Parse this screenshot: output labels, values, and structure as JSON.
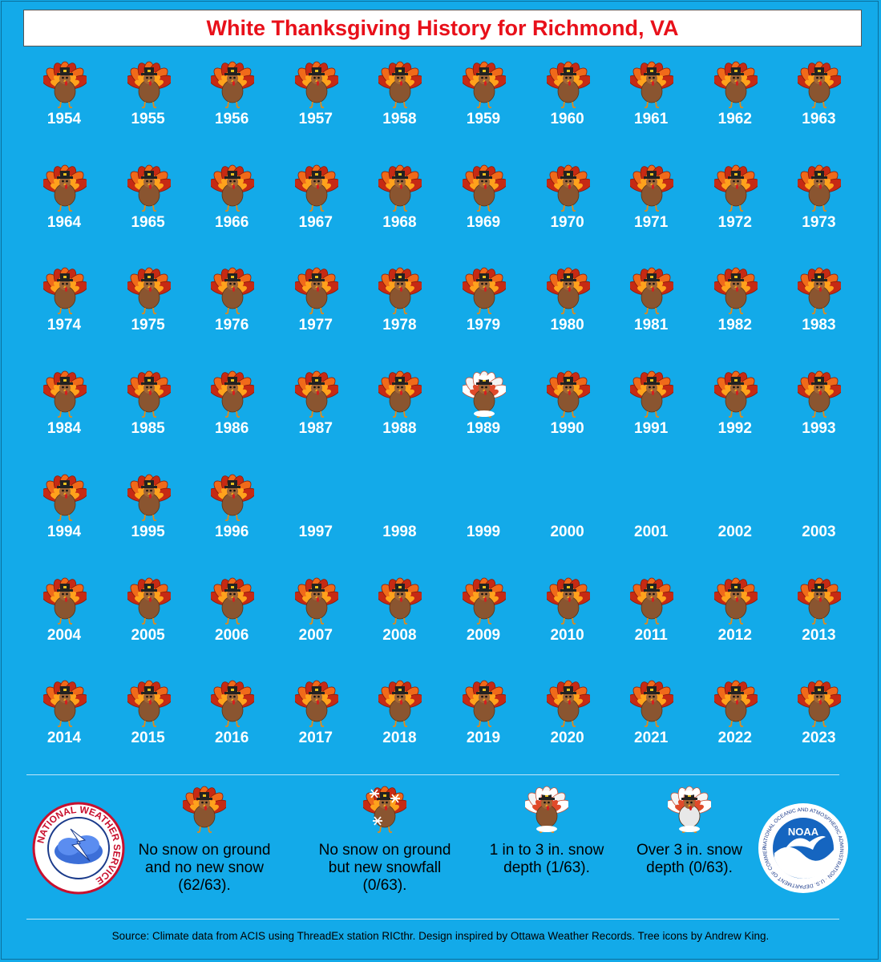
{
  "title": "White Thanksgiving History for Richmond, VA",
  "colors": {
    "background": "#13aae9",
    "title": "#e8101a",
    "no_snow": "#7a4a2a",
    "snow": "#ffffff"
  },
  "chart_data": {
    "type": "table",
    "title": "White Thanksgiving History for Richmond, VA",
    "categories": [
      "no_snow",
      "new_snowfall",
      "depth_1_to_3",
      "depth_over_3",
      "missing"
    ],
    "years": [
      {
        "year": "1954",
        "status": "no_snow"
      },
      {
        "year": "1955",
        "status": "no_snow"
      },
      {
        "year": "1956",
        "status": "no_snow"
      },
      {
        "year": "1957",
        "status": "no_snow"
      },
      {
        "year": "1958",
        "status": "no_snow"
      },
      {
        "year": "1959",
        "status": "no_snow"
      },
      {
        "year": "1960",
        "status": "no_snow"
      },
      {
        "year": "1961",
        "status": "no_snow"
      },
      {
        "year": "1962",
        "status": "no_snow"
      },
      {
        "year": "1963",
        "status": "no_snow"
      },
      {
        "year": "1964",
        "status": "no_snow"
      },
      {
        "year": "1965",
        "status": "no_snow"
      },
      {
        "year": "1966",
        "status": "no_snow"
      },
      {
        "year": "1967",
        "status": "no_snow"
      },
      {
        "year": "1968",
        "status": "no_snow"
      },
      {
        "year": "1969",
        "status": "no_snow"
      },
      {
        "year": "1970",
        "status": "no_snow"
      },
      {
        "year": "1971",
        "status": "no_snow"
      },
      {
        "year": "1972",
        "status": "no_snow"
      },
      {
        "year": "1973",
        "status": "no_snow"
      },
      {
        "year": "1974",
        "status": "no_snow"
      },
      {
        "year": "1975",
        "status": "no_snow"
      },
      {
        "year": "1976",
        "status": "no_snow"
      },
      {
        "year": "1977",
        "status": "no_snow"
      },
      {
        "year": "1978",
        "status": "no_snow"
      },
      {
        "year": "1979",
        "status": "no_snow"
      },
      {
        "year": "1980",
        "status": "no_snow"
      },
      {
        "year": "1981",
        "status": "no_snow"
      },
      {
        "year": "1982",
        "status": "no_snow"
      },
      {
        "year": "1983",
        "status": "no_snow"
      },
      {
        "year": "1984",
        "status": "no_snow"
      },
      {
        "year": "1985",
        "status": "no_snow"
      },
      {
        "year": "1986",
        "status": "no_snow"
      },
      {
        "year": "1987",
        "status": "no_snow"
      },
      {
        "year": "1988",
        "status": "no_snow"
      },
      {
        "year": "1989",
        "status": "depth_1_to_3"
      },
      {
        "year": "1990",
        "status": "no_snow"
      },
      {
        "year": "1991",
        "status": "no_snow"
      },
      {
        "year": "1992",
        "status": "no_snow"
      },
      {
        "year": "1993",
        "status": "no_snow"
      },
      {
        "year": "1994",
        "status": "no_snow"
      },
      {
        "year": "1995",
        "status": "no_snow"
      },
      {
        "year": "1996",
        "status": "no_snow"
      },
      {
        "year": "1997",
        "status": "missing"
      },
      {
        "year": "1998",
        "status": "missing"
      },
      {
        "year": "1999",
        "status": "missing"
      },
      {
        "year": "2000",
        "status": "missing"
      },
      {
        "year": "2001",
        "status": "missing"
      },
      {
        "year": "2002",
        "status": "missing"
      },
      {
        "year": "2003",
        "status": "missing"
      },
      {
        "year": "2004",
        "status": "no_snow"
      },
      {
        "year": "2005",
        "status": "no_snow"
      },
      {
        "year": "2006",
        "status": "no_snow"
      },
      {
        "year": "2007",
        "status": "no_snow"
      },
      {
        "year": "2008",
        "status": "no_snow"
      },
      {
        "year": "2009",
        "status": "no_snow"
      },
      {
        "year": "2010",
        "status": "no_snow"
      },
      {
        "year": "2011",
        "status": "no_snow"
      },
      {
        "year": "2012",
        "status": "no_snow"
      },
      {
        "year": "2013",
        "status": "no_snow"
      },
      {
        "year": "2014",
        "status": "no_snow"
      },
      {
        "year": "2015",
        "status": "no_snow"
      },
      {
        "year": "2016",
        "status": "no_snow"
      },
      {
        "year": "2017",
        "status": "no_snow"
      },
      {
        "year": "2018",
        "status": "no_snow"
      },
      {
        "year": "2019",
        "status": "no_snow"
      },
      {
        "year": "2020",
        "status": "no_snow"
      },
      {
        "year": "2021",
        "status": "no_snow"
      },
      {
        "year": "2022",
        "status": "no_snow"
      },
      {
        "year": "2023",
        "status": "no_snow"
      }
    ]
  },
  "legend": [
    {
      "status": "no_snow",
      "icon": "turkey-icon",
      "label": "No snow on ground and no new snow (62/63)."
    },
    {
      "status": "new_snowfall",
      "icon": "turkey-snowflakes-icon",
      "label": "No snow on ground but new snowfall (0/63)."
    },
    {
      "status": "depth_1_to_3",
      "icon": "turkey-light-snow-icon",
      "label": "1 in to 3 in. snow depth (1/63)."
    },
    {
      "status": "depth_over_3",
      "icon": "turkey-heavy-snow-icon",
      "label": "Over 3 in. snow depth (0/63)."
    }
  ],
  "logos": {
    "nws": {
      "text": "NATIONAL WEATHER SERVICE",
      "icon": "nws-logo-icon"
    },
    "noaa": {
      "text": "NOAA",
      "ring_text": "NATIONAL OCEANIC AND ATMOSPHERIC ADMINISTRATION · U.S. DEPARTMENT OF COMMERCE",
      "icon": "noaa-logo-icon"
    }
  },
  "source": "Source: Climate data from ACIS using ThreadEx station RICthr. Design inspired by Ottawa Weather Records. Tree icons by Andrew King."
}
